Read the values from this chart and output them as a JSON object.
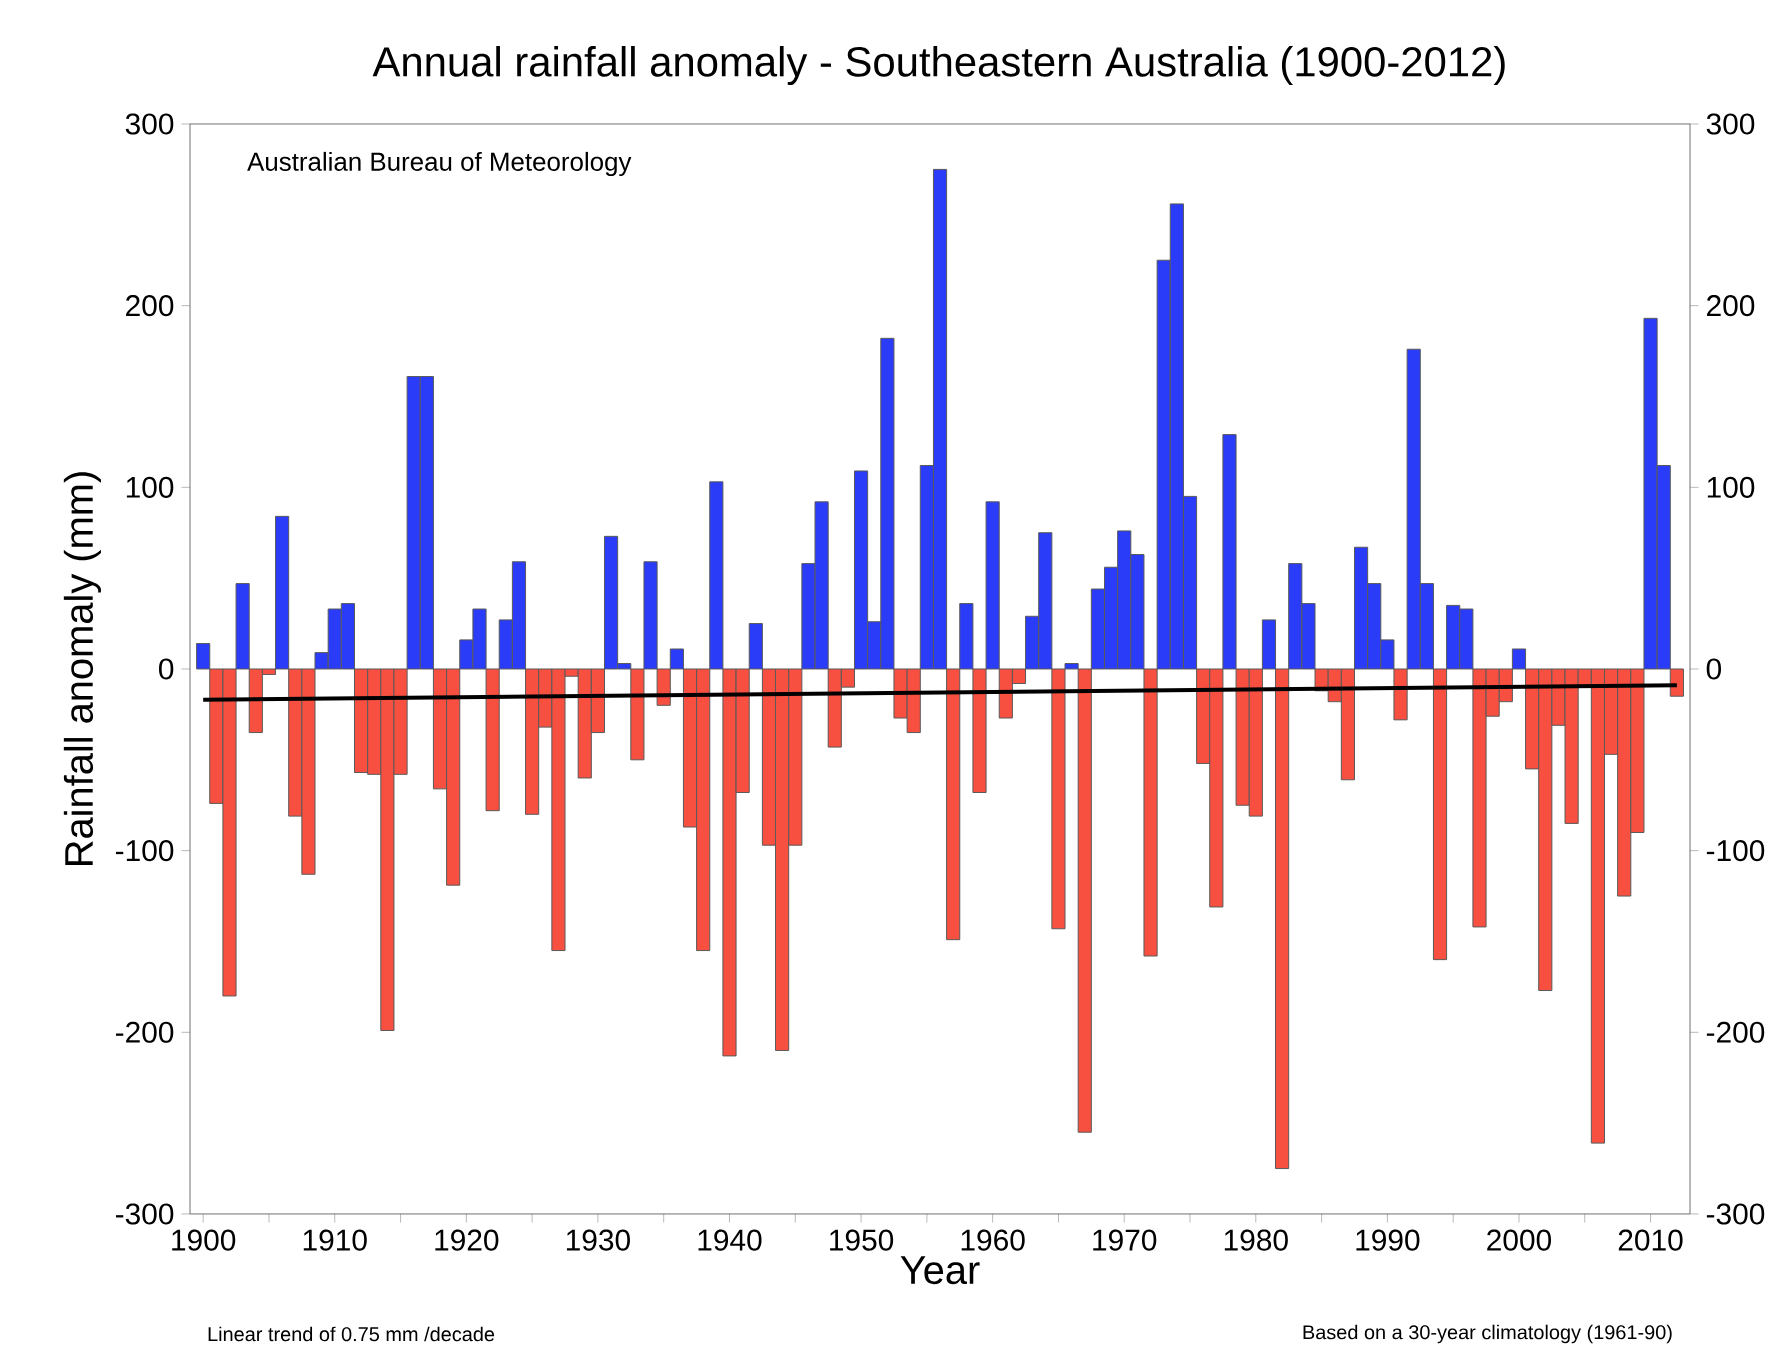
{
  "chart_data": {
    "type": "bar",
    "title": "Annual rainfall anomaly - Southeastern Australia (1900-2012)",
    "xlabel": "Year",
    "ylabel": "Rainfall anomaly (mm)",
    "annotations": [
      "Australian Bureau of Meteorology",
      "Linear  trend of 0.75 mm /decade",
      "Based on a 30-year climatology (1961-90)"
    ],
    "x": [
      1900,
      1901,
      1902,
      1903,
      1904,
      1905,
      1906,
      1907,
      1908,
      1909,
      1910,
      1911,
      1912,
      1913,
      1914,
      1915,
      1916,
      1917,
      1918,
      1919,
      1920,
      1921,
      1922,
      1923,
      1924,
      1925,
      1926,
      1927,
      1928,
      1929,
      1930,
      1931,
      1932,
      1933,
      1934,
      1935,
      1936,
      1937,
      1938,
      1939,
      1940,
      1941,
      1942,
      1943,
      1944,
      1945,
      1946,
      1947,
      1948,
      1949,
      1950,
      1951,
      1952,
      1953,
      1954,
      1955,
      1956,
      1957,
      1958,
      1959,
      1960,
      1961,
      1962,
      1963,
      1964,
      1965,
      1966,
      1967,
      1968,
      1969,
      1970,
      1971,
      1972,
      1973,
      1974,
      1975,
      1976,
      1977,
      1978,
      1979,
      1980,
      1981,
      1982,
      1983,
      1984,
      1985,
      1986,
      1987,
      1988,
      1989,
      1990,
      1991,
      1992,
      1993,
      1994,
      1995,
      1996,
      1997,
      1998,
      1999,
      2000,
      2001,
      2002,
      2003,
      2004,
      2005,
      2006,
      2007,
      2008,
      2009,
      2010,
      2011,
      2012
    ],
    "series": [
      {
        "values": [
          14,
          -74,
          -180,
          47,
          -35,
          -3,
          84,
          -81,
          -113,
          9,
          33,
          36,
          -57,
          -58,
          -199,
          -58,
          161,
          161,
          -66,
          -119,
          16,
          33,
          -78,
          27,
          59,
          -80,
          -32,
          -155,
          -4,
          -60,
          -35,
          73,
          3,
          -50,
          59,
          -20,
          11,
          -87,
          -155,
          103,
          -213,
          -68,
          25,
          -97,
          -210,
          -97,
          58,
          92,
          -43,
          -10,
          109,
          26,
          182,
          -27,
          -35,
          112,
          275,
          -149,
          36,
          -68,
          92,
          -27,
          -8,
          29,
          75,
          -143,
          3,
          -255,
          44,
          56,
          76,
          63,
          -158,
          225,
          256,
          95,
          -52,
          -131,
          129,
          -75,
          -81,
          27,
          -275,
          58,
          36,
          -12,
          -18,
          -61,
          67,
          47,
          16,
          -28,
          176,
          47,
          -160,
          35,
          33,
          -142,
          -26,
          -18,
          11,
          -55,
          -177,
          -31,
          -85,
          -10,
          -261,
          -47,
          -125,
          -90,
          193,
          112,
          -15
        ],
        "colors": [
          "#2a3cf7",
          "#f85040",
          "#f85040",
          "#2a3cf7",
          "#f85040",
          "#f85040",
          "#2a3cf7",
          "#f85040",
          "#f85040",
          "#2a3cf7",
          "#2a3cf7",
          "#2a3cf7",
          "#f85040",
          "#f85040",
          "#f85040",
          "#f85040",
          "#2a3cf7",
          "#2a3cf7",
          "#f85040",
          "#f85040",
          "#2a3cf7",
          "#2a3cf7",
          "#f85040",
          "#2a3cf7",
          "#2a3cf7",
          "#f85040",
          "#f85040",
          "#f85040",
          "#f85040",
          "#f85040",
          "#f85040",
          "#2a3cf7",
          "#2a3cf7",
          "#f85040",
          "#2a3cf7",
          "#f85040",
          "#2a3cf7",
          "#f85040",
          "#f85040",
          "#2a3cf7",
          "#f85040",
          "#f85040",
          "#2a3cf7",
          "#f85040",
          "#f85040",
          "#f85040",
          "#2a3cf7",
          "#2a3cf7",
          "#f85040",
          "#f85040",
          "#2a3cf7",
          "#2a3cf7",
          "#2a3cf7",
          "#f85040",
          "#f85040",
          "#2a3cf7",
          "#2a3cf7",
          "#f85040",
          "#2a3cf7",
          "#f85040",
          "#2a3cf7",
          "#f85040",
          "#f85040",
          "#2a3cf7",
          "#2a3cf7",
          "#f85040",
          "#2a3cf7",
          "#f85040",
          "#2a3cf7",
          "#2a3cf7",
          "#2a3cf7",
          "#2a3cf7",
          "#f85040",
          "#2a3cf7",
          "#2a3cf7",
          "#2a3cf7",
          "#f85040",
          "#f85040",
          "#2a3cf7",
          "#f85040",
          "#f85040",
          "#2a3cf7",
          "#f85040",
          "#2a3cf7",
          "#2a3cf7",
          "#f85040",
          "#f85040",
          "#f85040",
          "#2a3cf7",
          "#2a3cf7",
          "#2a3cf7",
          "#f85040",
          "#2a3cf7",
          "#2a3cf7",
          "#f85040",
          "#2a3cf7",
          "#2a3cf7",
          "#f85040",
          "#f85040",
          "#f85040",
          "#2a3cf7",
          "#f85040",
          "#f85040",
          "#f85040",
          "#f85040",
          "#f85040",
          "#f85040",
          "#f85040",
          "#f85040",
          "#f85040",
          "#2a3cf7",
          "#2a3cf7",
          "#f85040"
        ]
      },
      {
        "type": "line",
        "x": [
          1900,
          2012
        ],
        "values": [
          -17,
          -9
        ],
        "color": "#000000"
      }
    ],
    "xlim": [
      1899,
      2013
    ],
    "xticks": [
      1900,
      {
        "value": 1905,
        "label": null
      },
      1910,
      {
        "value": 1915,
        "label": null
      },
      1920,
      {
        "value": 1925,
        "label": null
      },
      1930,
      {
        "value": 1935,
        "label": null
      },
      1940,
      {
        "value": 1945,
        "label": null
      },
      1950,
      {
        "value": 1955,
        "label": null
      },
      1960,
      {
        "value": 1965,
        "label": null
      },
      1970,
      {
        "value": 1975,
        "label": null
      },
      1980,
      {
        "value": 1985,
        "label": null
      },
      1990,
      {
        "value": 1995,
        "label": null
      },
      2000,
      {
        "value": 2005,
        "label": null
      },
      2010
    ],
    "ylim": [
      -300,
      300
    ],
    "yticks": [
      -300,
      -200,
      -100,
      0,
      100,
      200,
      300
    ],
    "y2lim": [
      -300,
      300
    ],
    "y2ticks": [
      -300,
      -200,
      -100,
      0,
      100,
      200,
      300
    ],
    "grid": false
  }
}
